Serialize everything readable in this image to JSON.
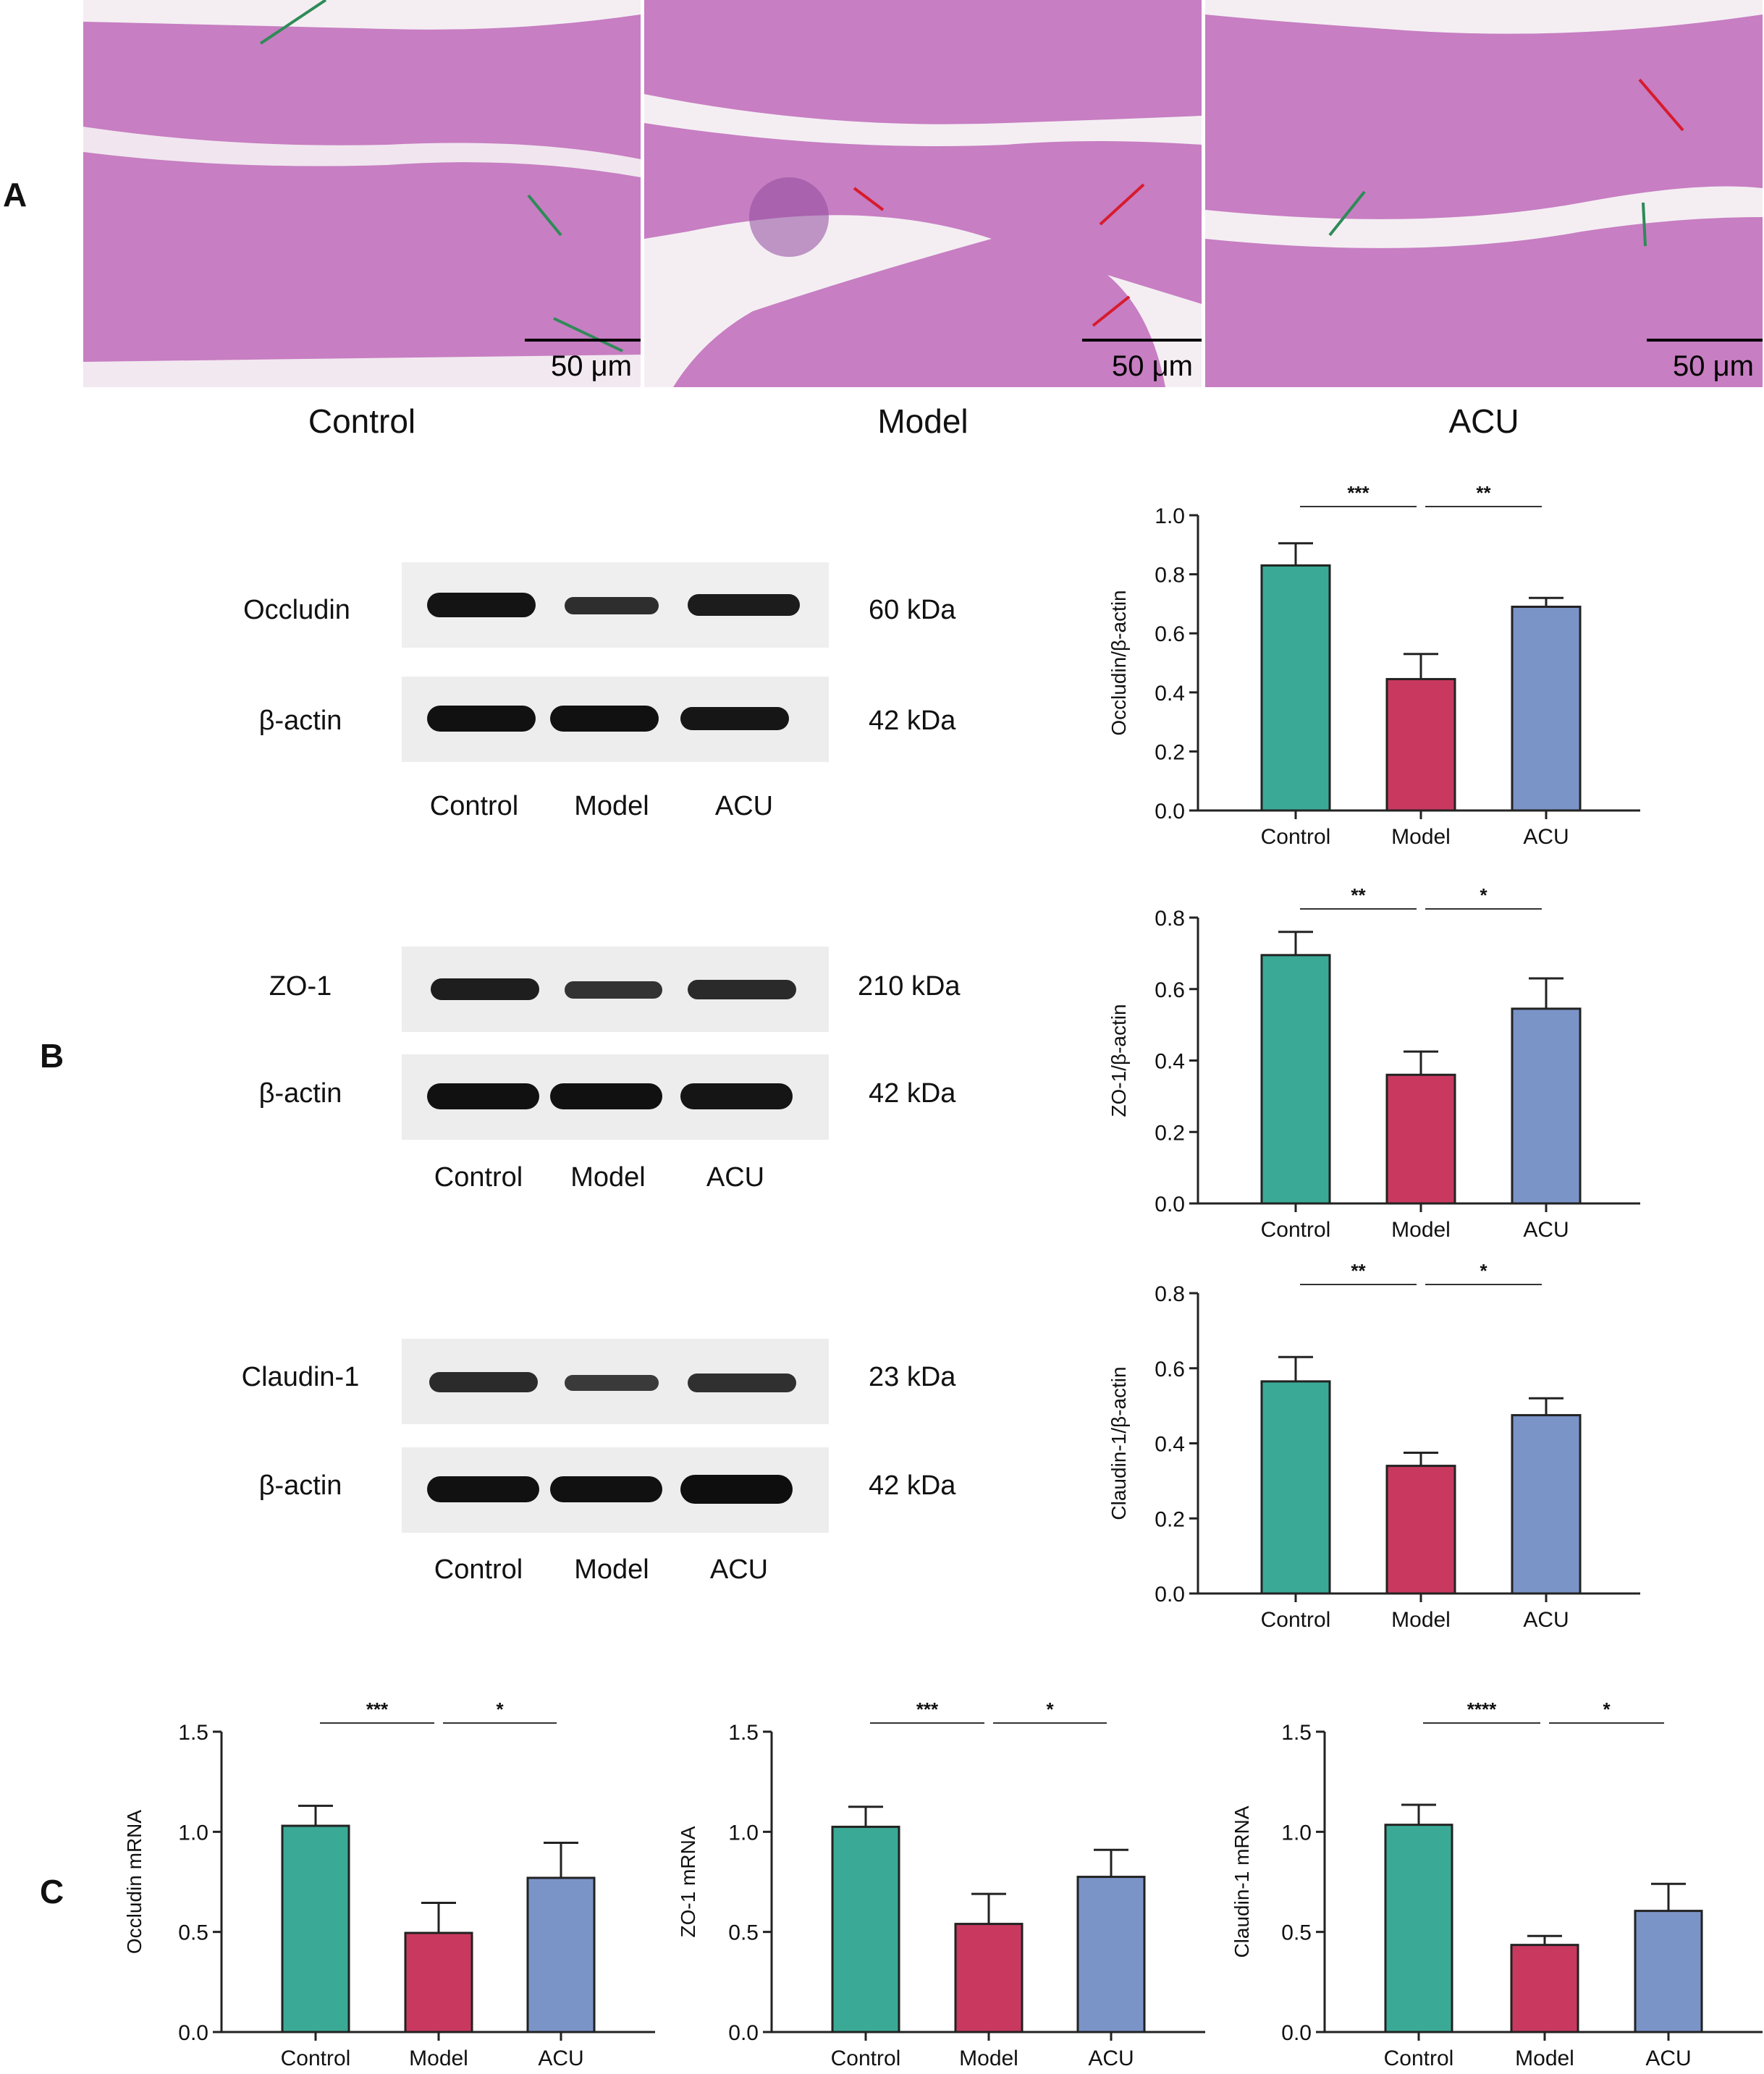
{
  "panel_labels": {
    "a": "A",
    "b": "B",
    "c": "C"
  },
  "histology": {
    "panels": [
      {
        "label": "Control",
        "scale_bar": "50 μm"
      },
      {
        "label": "Model",
        "scale_bar": "50 μm"
      },
      {
        "label": "ACU",
        "scale_bar": "50 μm"
      }
    ]
  },
  "western_blots": [
    {
      "protein": "Occludin",
      "protein_kda": "60 kDa",
      "loading": "β-actin",
      "loading_kda": "42 kDa",
      "lanes": [
        "Control",
        "Model",
        "ACU"
      ]
    },
    {
      "protein": "ZO-1",
      "protein_kda": "210 kDa",
      "loading": "β-actin",
      "loading_kda": "42 kDa",
      "lanes": [
        "Control",
        "Model",
        "ACU"
      ]
    },
    {
      "protein": "Claudin-1",
      "protein_kda": "23 kDa",
      "loading": "β-actin",
      "loading_kda": "42 kDa",
      "lanes": [
        "Control",
        "Model",
        "ACU"
      ]
    }
  ],
  "colors": {
    "Control": "#3aaa96",
    "Model": "#c9395f",
    "ACU": "#7b94c8"
  },
  "chart_data": [
    {
      "type": "bar",
      "ylabel": "Occludin/β-actin",
      "categories": [
        "Control",
        "Model",
        "ACU"
      ],
      "values": [
        0.83,
        0.445,
        0.69
      ],
      "errors": [
        0.075,
        0.085,
        0.03
      ],
      "ylim": [
        0,
        1.0
      ],
      "yticks": [
        "0.0",
        "0.2",
        "0.4",
        "0.6",
        "0.8",
        "1.0"
      ],
      "significance": [
        {
          "from": "Control",
          "to": "Model",
          "label": "***"
        },
        {
          "from": "Model",
          "to": "ACU",
          "label": "**"
        }
      ]
    },
    {
      "type": "bar",
      "ylabel": "ZO-1/β-actin",
      "categories": [
        "Control",
        "Model",
        "ACU"
      ],
      "values": [
        0.695,
        0.36,
        0.545
      ],
      "errors": [
        0.065,
        0.065,
        0.085
      ],
      "ylim": [
        0,
        0.8
      ],
      "yticks": [
        "0.0",
        "0.2",
        "0.4",
        "0.6",
        "0.8"
      ],
      "significance": [
        {
          "from": "Control",
          "to": "Model",
          "label": "**"
        },
        {
          "from": "Model",
          "to": "ACU",
          "label": "*"
        }
      ]
    },
    {
      "type": "bar",
      "ylabel": "Claudin-1/β-actin",
      "categories": [
        "Control",
        "Model",
        "ACU"
      ],
      "values": [
        0.565,
        0.34,
        0.475
      ],
      "errors": [
        0.065,
        0.035,
        0.045
      ],
      "ylim": [
        0,
        0.8
      ],
      "yticks": [
        "0.0",
        "0.2",
        "0.4",
        "0.6",
        "0.8"
      ],
      "significance": [
        {
          "from": "Control",
          "to": "Model",
          "label": "**"
        },
        {
          "from": "Model",
          "to": "ACU",
          "label": "*"
        }
      ]
    },
    {
      "type": "bar",
      "ylabel": "Occludin mRNA",
      "categories": [
        "Control",
        "Model",
        "ACU"
      ],
      "values": [
        1.03,
        0.495,
        0.77
      ],
      "errors": [
        0.1,
        0.15,
        0.175
      ],
      "ylim": [
        0,
        1.5
      ],
      "yticks": [
        "0.0",
        "0.5",
        "1.0",
        "1.5"
      ],
      "significance": [
        {
          "from": "Control",
          "to": "Model",
          "label": "***"
        },
        {
          "from": "Model",
          "to": "ACU",
          "label": "*"
        }
      ]
    },
    {
      "type": "bar",
      "ylabel": "ZO-1 mRNA",
      "categories": [
        "Control",
        "Model",
        "ACU"
      ],
      "values": [
        1.025,
        0.54,
        0.775
      ],
      "errors": [
        0.1,
        0.15,
        0.135
      ],
      "ylim": [
        0,
        1.5
      ],
      "yticks": [
        "0.0",
        "0.5",
        "1.0",
        "1.5"
      ],
      "significance": [
        {
          "from": "Control",
          "to": "Model",
          "label": "***"
        },
        {
          "from": "Model",
          "to": "ACU",
          "label": "*"
        }
      ]
    },
    {
      "type": "bar",
      "ylabel": "Claudin-1 mRNA",
      "categories": [
        "Control",
        "Model",
        "ACU"
      ],
      "values": [
        1.035,
        0.435,
        0.605
      ],
      "errors": [
        0.1,
        0.045,
        0.135
      ],
      "ylim": [
        0,
        1.5
      ],
      "yticks": [
        "0.0",
        "0.5",
        "1.0",
        "1.5"
      ],
      "significance": [
        {
          "from": "Control",
          "to": "Model",
          "label": "****"
        },
        {
          "from": "Model",
          "to": "ACU",
          "label": "*"
        }
      ]
    }
  ]
}
